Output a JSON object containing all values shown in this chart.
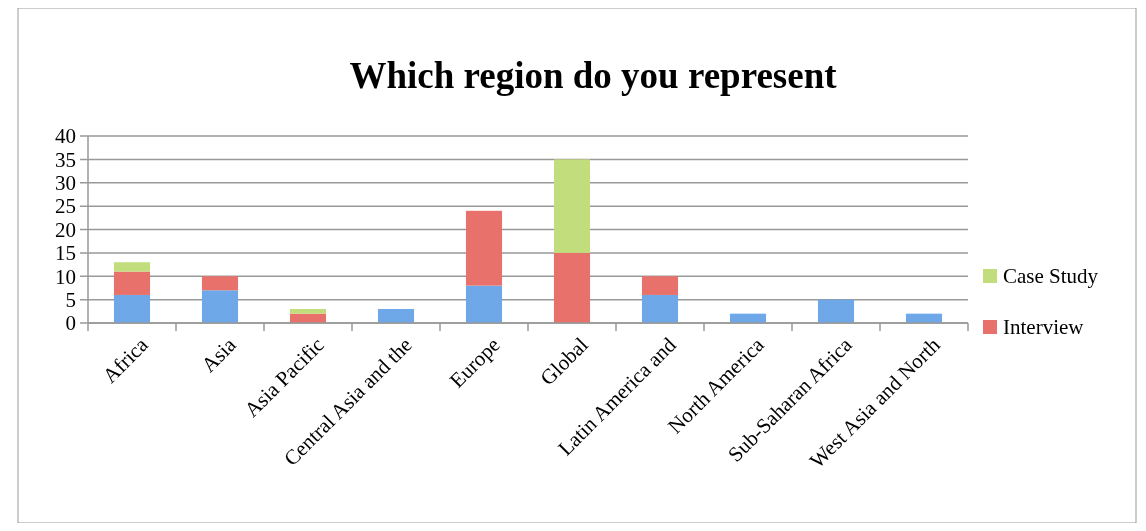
{
  "chart_data": {
    "type": "bar",
    "title": "Which region do you represent",
    "categories": [
      "Africa",
      "Asia",
      "Asia Pacific",
      "Central Asia and the",
      "Europe",
      "Global",
      "Latin America and",
      "North America",
      "Sub-Saharan Africa",
      "West Asia and North"
    ],
    "stacked": true,
    "ylim": [
      0,
      40
    ],
    "yticks": [
      0,
      5,
      10,
      15,
      20,
      25,
      30,
      35,
      40
    ],
    "grid": "y",
    "legend": "right",
    "series": [
      {
        "color": "#6fa8e8",
        "values": [
          6,
          7,
          0,
          3,
          8,
          0,
          6,
          2,
          5,
          2
        ]
      },
      {
        "name": "Interview",
        "color": "#e8716b",
        "values": [
          5,
          3,
          2,
          0,
          16,
          15,
          4,
          0,
          0,
          0
        ]
      },
      {
        "name": "Case Study",
        "color": "#c2de7c",
        "values": [
          2,
          0,
          1,
          0,
          0,
          20,
          0,
          0,
          0,
          0
        ]
      }
    ]
  }
}
